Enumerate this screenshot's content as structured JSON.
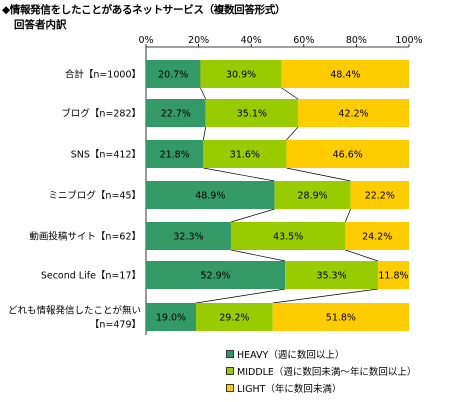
{
  "title": "◆情報発信をしたことがあるネットサービス（複数回答形式）",
  "subtitle": "回答者内訳",
  "chart_data": {
    "type": "bar",
    "orientation": "horizontal",
    "stacked": "percent",
    "title": "",
    "xlabel": "",
    "ylabel": "",
    "xlim": [
      0,
      100
    ],
    "x_ticks": [
      "0%",
      "20%",
      "40%",
      "60%",
      "80%",
      "100%"
    ],
    "grid": false,
    "legend_position": "bottom-right",
    "categories": [
      "合計【n=1000】",
      "ブログ【n=282】",
      "SNS【n=412】",
      "ミニブログ【n=45】",
      "動画投稿サイト【n=62】",
      "Second Life【n=17】",
      "どれも情報発信したことが無い【n=479】"
    ],
    "category_lines": [
      [
        "合計【n=1000】"
      ],
      [
        "ブログ【n=282】"
      ],
      [
        "SNS【n=412】"
      ],
      [
        "ミニブログ【n=45】"
      ],
      [
        "動画投稿サイト【n=62】"
      ],
      [
        "Second Life【n=17】"
      ],
      [
        "どれも情報発信したことが無い",
        "【n=479】"
      ]
    ],
    "series": [
      {
        "name": "HEAVY（週に数回以上）",
        "color": "#339966",
        "values": [
          20.7,
          22.7,
          21.8,
          48.9,
          32.3,
          52.9,
          19.0
        ],
        "labels": [
          "20.7%",
          "22.7%",
          "21.8%",
          "48.9%",
          "32.3%",
          "52.9%",
          "19.0%"
        ]
      },
      {
        "name": "MIDDLE（週に数回未満〜年に数回以上）",
        "color": "#99cc00",
        "values": [
          30.9,
          35.1,
          31.6,
          28.9,
          43.5,
          35.3,
          29.2
        ],
        "labels": [
          "30.9%",
          "35.1%",
          "31.6%",
          "28.9%",
          "43.5%",
          "35.3%",
          "29.2%"
        ]
      },
      {
        "name": "LIGHT（年に数回未満）",
        "color": "#ffcc00",
        "values": [
          48.4,
          42.2,
          46.6,
          22.2,
          24.2,
          11.8,
          51.8
        ],
        "labels": [
          "48.4%",
          "42.2%",
          "46.6%",
          "22.2%",
          "24.2%",
          "11.8%",
          "51.8%"
        ]
      }
    ]
  }
}
